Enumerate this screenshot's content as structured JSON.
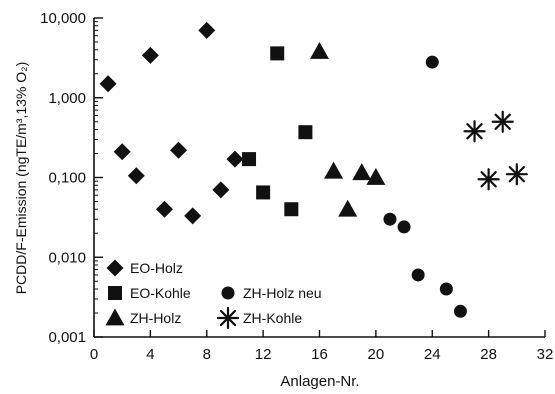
{
  "chart_data": {
    "type": "scatter",
    "xlabel": "Anlagen-Nr.",
    "ylabel": "PCDD/F-Emission (ngTE/m³,13% O₂)",
    "xlim": [
      0,
      32
    ],
    "ylim": [
      0.001,
      10
    ],
    "y_scale": "log",
    "grid": false,
    "legend_placement": "bottom-left",
    "x_ticks": [
      0,
      4,
      8,
      12,
      16,
      20,
      24,
      28,
      32
    ],
    "x_tick_labels": [
      "0",
      "4",
      "8",
      "12",
      "16",
      "20",
      "24",
      "28",
      "32"
    ],
    "y_ticks": [
      0.001,
      0.01,
      0.1,
      1,
      10
    ],
    "y_tick_labels": [
      "0,001",
      "0,010",
      "0,100",
      "1,000",
      "10,000"
    ],
    "series": [
      {
        "name": "EO-Holz",
        "marker": "diamond",
        "points": [
          {
            "x": 1,
            "y": 1.5
          },
          {
            "x": 2,
            "y": 0.21
          },
          {
            "x": 3,
            "y": 0.105
          },
          {
            "x": 4,
            "y": 3.4
          },
          {
            "x": 5,
            "y": 0.04
          },
          {
            "x": 6,
            "y": 0.22
          },
          {
            "x": 7,
            "y": 0.033
          },
          {
            "x": 8,
            "y": 7.0
          },
          {
            "x": 9,
            "y": 0.07
          },
          {
            "x": 10,
            "y": 0.17
          }
        ]
      },
      {
        "name": "EO-Kohle",
        "marker": "square",
        "points": [
          {
            "x": 11,
            "y": 0.17
          },
          {
            "x": 12,
            "y": 0.065
          },
          {
            "x": 13,
            "y": 3.6
          },
          {
            "x": 14,
            "y": 0.04
          },
          {
            "x": 15,
            "y": 0.37
          }
        ]
      },
      {
        "name": "ZH-Holz",
        "marker": "triangle",
        "points": [
          {
            "x": 16,
            "y": 3.8
          },
          {
            "x": 17,
            "y": 0.12
          },
          {
            "x": 18,
            "y": 0.04
          },
          {
            "x": 19,
            "y": 0.115
          },
          {
            "x": 20,
            "y": 0.1
          }
        ]
      },
      {
        "name": "ZH-Holz neu",
        "marker": "circle",
        "points": [
          {
            "x": 21,
            "y": 0.03
          },
          {
            "x": 22,
            "y": 0.024
          },
          {
            "x": 23,
            "y": 0.006
          },
          {
            "x": 24,
            "y": 2.8
          },
          {
            "x": 25,
            "y": 0.004
          },
          {
            "x": 26,
            "y": 0.0021
          }
        ]
      },
      {
        "name": "ZH-Kohle",
        "marker": "star",
        "points": [
          {
            "x": 27,
            "y": 0.38
          },
          {
            "x": 28,
            "y": 0.095
          },
          {
            "x": 29,
            "y": 0.5
          },
          {
            "x": 30,
            "y": 0.11
          }
        ]
      }
    ],
    "legend": [
      {
        "name": "EO-Holz",
        "marker": "diamond"
      },
      {
        "name": "EO-Kohle",
        "marker": "square"
      },
      {
        "name": "ZH-Holz neu",
        "marker": "circle"
      },
      {
        "name": "ZH-Holz",
        "marker": "triangle"
      },
      {
        "name": "ZH-Kohle",
        "marker": "star"
      }
    ],
    "colors": {
      "marker": "#111111",
      "axis": "#111111",
      "background": "#ffffff"
    }
  }
}
